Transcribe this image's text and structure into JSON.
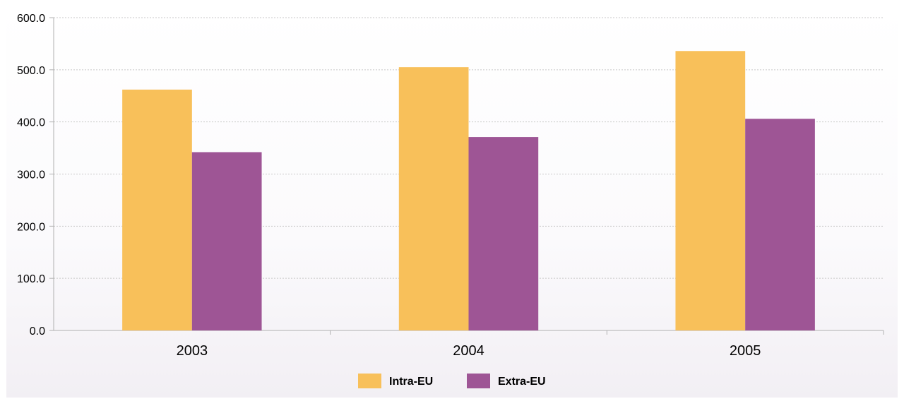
{
  "chart_data": {
    "type": "bar",
    "title": "",
    "xlabel": "",
    "ylabel": "",
    "categories": [
      "2003",
      "2004",
      "2005"
    ],
    "series": [
      {
        "name": "Intra-EU",
        "color": "#F8C05A",
        "values": [
          462,
          505,
          536
        ]
      },
      {
        "name": "Extra-EU",
        "color": "#9E5595",
        "values": [
          342,
          371,
          406
        ]
      }
    ],
    "ylim": [
      0,
      600
    ],
    "yticks": [
      "0.0",
      "100.0",
      "200.0",
      "300.0",
      "400.0",
      "500.0",
      "600.0"
    ],
    "grid": true,
    "legend_position": "bottom-center"
  }
}
